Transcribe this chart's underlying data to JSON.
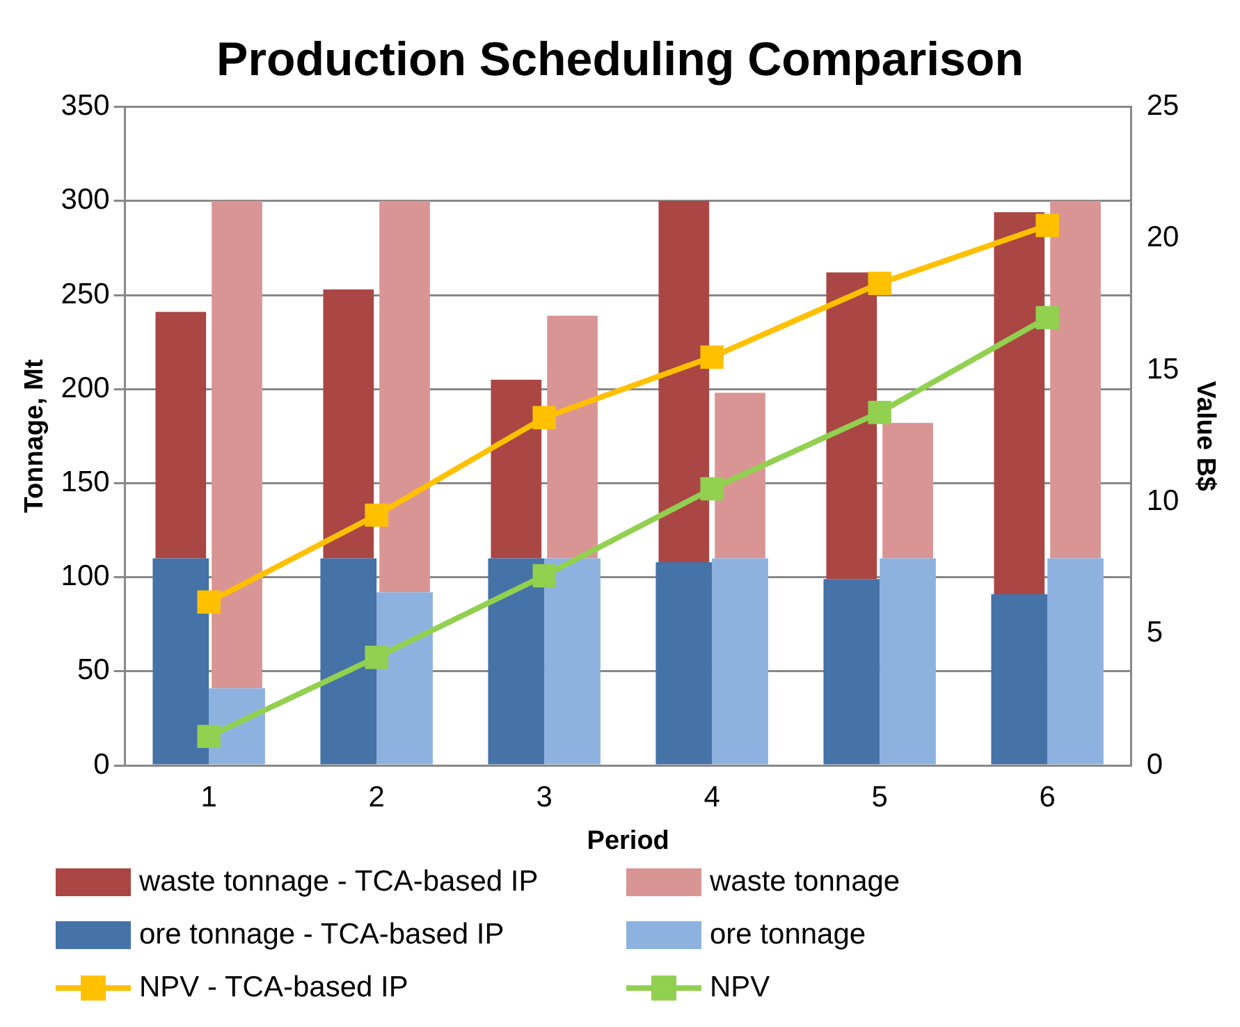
{
  "chart_data": {
    "type": "bar",
    "title": "Production Scheduling Comparison",
    "xlabel": "Period",
    "ylabel": "Tonnage, Mt",
    "y2label": "Value B$",
    "categories": [
      "1",
      "2",
      "3",
      "4",
      "5",
      "6"
    ],
    "grid": "y",
    "legend": "bottom",
    "marker": "square",
    "ylim": [
      0,
      350
    ],
    "yticks": [
      0,
      50,
      100,
      150,
      200,
      250,
      300,
      350
    ],
    "y2lim": [
      0,
      25
    ],
    "y2ticks": [
      0,
      5,
      10,
      15,
      20,
      25
    ],
    "series": [
      {
        "name": "ore tonnage - TCA-based IP",
        "color": "#4572a7",
        "values": [
          110,
          110,
          110,
          108,
          99,
          91
        ]
      },
      {
        "name": "waste tonnage - TCA-based IP",
        "color": "#aa4643",
        "base": [
          110,
          110,
          110,
          108,
          99,
          91
        ],
        "values": [
          131,
          143,
          95,
          192,
          163,
          203
        ]
      },
      {
        "name": "ore tonnage",
        "color": "#8eb2e0",
        "values": [
          41,
          92,
          110,
          110,
          110,
          110
        ]
      },
      {
        "name": "waste tonnage",
        "color": "#d99594",
        "base": [
          41,
          92,
          110,
          110,
          110,
          110
        ],
        "values": [
          259,
          208,
          129,
          88,
          72,
          190
        ]
      },
      {
        "name": "NPV - TCA-based IP",
        "type": "line",
        "axis": "y2",
        "color": "#ffc000",
        "values": [
          6.2,
          9.5,
          13.2,
          15.5,
          18.3,
          20.5
        ]
      },
      {
        "name": "NPV",
        "type": "line",
        "axis": "y2",
        "color": "#92d050",
        "values": [
          1.1,
          4.1,
          7.2,
          10.5,
          13.4,
          17.0
        ]
      }
    ]
  }
}
